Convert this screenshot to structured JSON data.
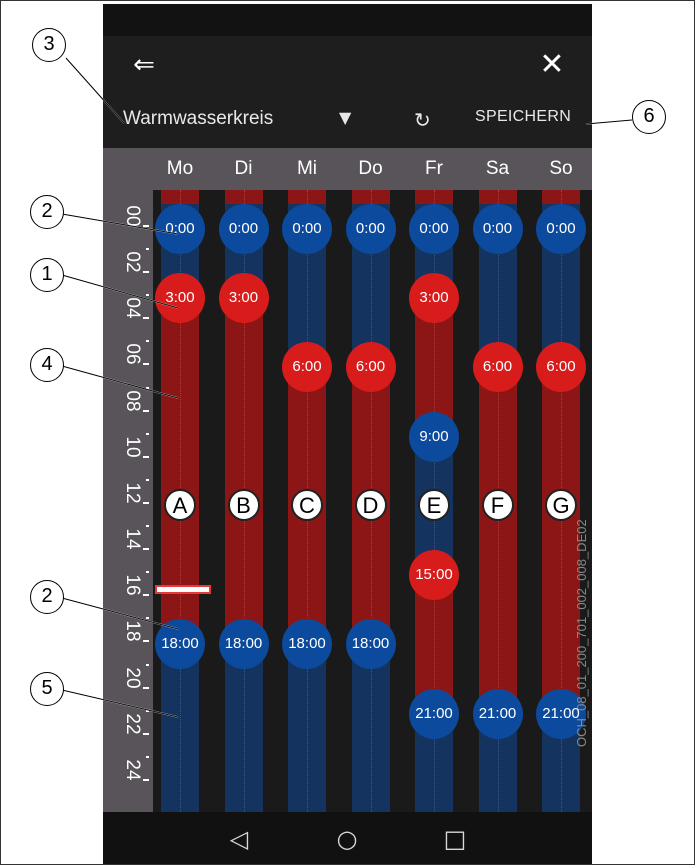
{
  "app": {
    "back_icon": "menu-back-icon",
    "close_icon": "close-icon",
    "circuit_name": "Warmwasserkreis",
    "dropdown_icon": "dropdown-arrow-icon",
    "reset_icon": "reset-icon",
    "save_label": "SPEICHERN"
  },
  "days": [
    {
      "label": "Mo",
      "letter": "A"
    },
    {
      "label": "Di",
      "letter": "B"
    },
    {
      "label": "Mi",
      "letter": "C"
    },
    {
      "label": "Do",
      "letter": "D"
    },
    {
      "label": "Fr",
      "letter": "E"
    },
    {
      "label": "Sa",
      "letter": "F"
    },
    {
      "label": "So",
      "letter": "G"
    }
  ],
  "axis_ticks": [
    "00",
    "02",
    "04",
    "06",
    "08",
    "10",
    "12",
    "14",
    "16",
    "18",
    "20",
    "22",
    "24"
  ],
  "schedule": [
    [
      {
        "time": "0:00",
        "state": "low"
      },
      {
        "time": "3:00",
        "state": "high"
      },
      {
        "time": "18:00",
        "state": "low"
      }
    ],
    [
      {
        "time": "0:00",
        "state": "low"
      },
      {
        "time": "3:00",
        "state": "high"
      },
      {
        "time": "18:00",
        "state": "low"
      }
    ],
    [
      {
        "time": "0:00",
        "state": "low"
      },
      {
        "time": "6:00",
        "state": "high"
      },
      {
        "time": "18:00",
        "state": "low"
      }
    ],
    [
      {
        "time": "0:00",
        "state": "low"
      },
      {
        "time": "6:00",
        "state": "high"
      },
      {
        "time": "18:00",
        "state": "low"
      }
    ],
    [
      {
        "time": "0:00",
        "state": "low"
      },
      {
        "time": "3:00",
        "state": "high"
      },
      {
        "time": "9:00",
        "state": "low"
      },
      {
        "time": "15:00",
        "state": "high"
      },
      {
        "time": "21:00",
        "state": "low"
      }
    ],
    [
      {
        "time": "0:00",
        "state": "low"
      },
      {
        "time": "6:00",
        "state": "high"
      },
      {
        "time": "21:00",
        "state": "low"
      }
    ],
    [
      {
        "time": "0:00",
        "state": "low"
      },
      {
        "time": "6:00",
        "state": "high"
      },
      {
        "time": "21:00",
        "state": "low"
      }
    ]
  ],
  "colors": {
    "low": "#0b4a9c",
    "high": "#d81c1c",
    "low_bar": "#14345f",
    "high_bar": "#8c1616"
  },
  "navbar": {
    "back_icon": "nav-back-triangle-icon",
    "home_icon": "nav-home-circle-icon",
    "recents_icon": "nav-recents-square-icon"
  },
  "callouts": [
    "1",
    "2",
    "3",
    "4",
    "5",
    "6"
  ],
  "figure_code": "OCH_08_01_200_701_002_008_DE02"
}
